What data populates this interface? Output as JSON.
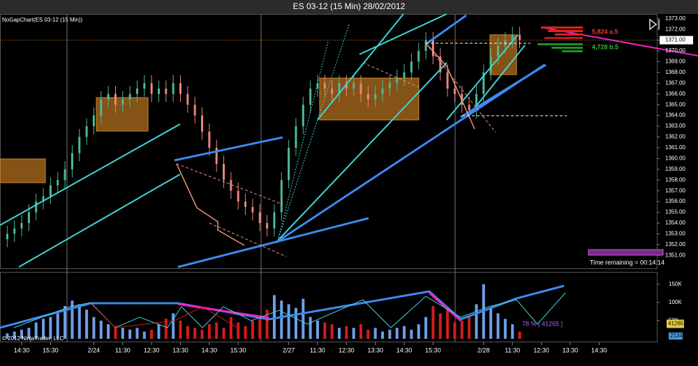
{
  "chart_data": {
    "type": "ohlc",
    "title": "ES 03-12 (15 Min)  28/02/2012",
    "indicator_label": "NoGapChart(ES 03-12 (15 Min))",
    "copyright": "© 2012 NinjaTrader, LLC",
    "ask_label": "5,824 a.5",
    "bid_label": "4,728 b.5",
    "time_remaining": "Time remaining = 00:14:14",
    "volume_ratio_label": "78 % [ 41265 ]",
    "current_volume": 41265,
    "secondary_volume": 2134,
    "last_price": {
      "value": 1371,
      "label": "1371.00"
    },
    "up_color": "#4fb99b",
    "down_color": "#e8877c",
    "volume_up_color": "#6f9ee8",
    "volume_down_color": "#d41c1c",
    "grid": false,
    "xlim": [
      -1,
      90
    ],
    "xticks": [
      {
        "value": 2,
        "label": "14:30"
      },
      {
        "value": 6,
        "label": "15:30"
      },
      {
        "value": 12,
        "label": "2/24"
      },
      {
        "value": 16,
        "label": "11:30"
      },
      {
        "value": 20,
        "label": "12:30"
      },
      {
        "value": 24,
        "label": "13:30"
      },
      {
        "value": 28,
        "label": "14:30"
      },
      {
        "value": 32,
        "label": "15:30"
      },
      {
        "value": 39,
        "label": "2/27"
      },
      {
        "value": 43,
        "label": "11:30"
      },
      {
        "value": 47,
        "label": "12:30"
      },
      {
        "value": 51,
        "label": "13:30"
      },
      {
        "value": 55,
        "label": "14:30"
      },
      {
        "value": 59,
        "label": "15:30"
      },
      {
        "value": 66,
        "label": "2/28"
      },
      {
        "value": 70,
        "label": "11:30"
      },
      {
        "value": 74,
        "label": "12:30"
      },
      {
        "value": 78,
        "label": "13:30"
      },
      {
        "value": 82,
        "label": "14:30"
      }
    ],
    "ylim": [
      1350.5,
      1373.5
    ],
    "yticks": [
      {
        "value": 1351,
        "label": "1351.00"
      },
      {
        "value": 1352,
        "label": "1352.00"
      },
      {
        "value": 1353,
        "label": "1353.00"
      },
      {
        "value": 1354,
        "label": "1354.00"
      },
      {
        "value": 1355,
        "label": "1355.00"
      },
      {
        "value": 1356,
        "label": "1356.00"
      },
      {
        "value": 1357,
        "label": "1357.00"
      },
      {
        "value": 1358,
        "label": "1358.00"
      },
      {
        "value": 1359,
        "label": "1359.00"
      },
      {
        "value": 1360,
        "label": "1360.00"
      },
      {
        "value": 1361,
        "label": "1361.00"
      },
      {
        "value": 1362,
        "label": "1362.00"
      },
      {
        "value": 1363,
        "label": "1363.00"
      },
      {
        "value": 1364,
        "label": "1364.00"
      },
      {
        "value": 1365,
        "label": "1365.00"
      },
      {
        "value": 1366,
        "label": "1366.00"
      },
      {
        "value": 1367,
        "label": "1367.00"
      },
      {
        "value": 1368,
        "label": "1368.00"
      },
      {
        "value": 1369,
        "label": "1369.00"
      },
      {
        "value": 1370,
        "label": "1370.00"
      },
      {
        "value": 1371,
        "label": "1371.00"
      },
      {
        "value": 1372,
        "label": "1372.00"
      },
      {
        "value": 1373,
        "label": "1373.00"
      }
    ],
    "y2lim": [
      0,
      182000
    ],
    "y2ticks": [
      {
        "value": 50000,
        "label": "50K"
      },
      {
        "value": 100000,
        "label": "100K"
      },
      {
        "value": 150000,
        "label": "150K"
      }
    ],
    "open": [
      1352.5,
      1353,
      1353.5,
      1354,
      1355,
      1356,
      1356.5,
      1357.5,
      1358,
      1359,
      1360.5,
      1362,
      1363,
      1364,
      1365.5,
      1366,
      1365,
      1365.5,
      1366,
      1366.5,
      1367,
      1366,
      1366.5,
      1366,
      1367,
      1366,
      1365,
      1364,
      1362.5,
      1361,
      1359.5,
      1358,
      1357,
      1356,
      1355.5,
      1355,
      1354,
      1353.5,
      1355,
      1358,
      1361,
      1363,
      1365,
      1366.5,
      1367,
      1366.5,
      1366,
      1367,
      1366.5,
      1367,
      1366,
      1365.5,
      1366,
      1366.5,
      1367,
      1367.5,
      1368,
      1369,
      1370,
      1371,
      1369.5,
      1368,
      1366.5,
      1366,
      1365,
      1364.5,
      1366,
      1368,
      1369.5,
      1370.5,
      1371,
      1371.5
    ],
    "high": [
      1353.75,
      1354.25,
      1354.75,
      1355.75,
      1356.75,
      1357.25,
      1358.25,
      1358.75,
      1359.75,
      1361.25,
      1362.75,
      1363.75,
      1364.75,
      1366.25,
      1366.75,
      1366.75,
      1366.25,
      1366.75,
      1367.25,
      1367.75,
      1367.75,
      1367.25,
      1367.25,
      1367.75,
      1367.75,
      1366.75,
      1365.75,
      1364.75,
      1363.25,
      1361.75,
      1360.25,
      1358.75,
      1357.75,
      1356.75,
      1356.25,
      1355.75,
      1354.75,
      1355.75,
      1358.75,
      1361.75,
      1363.75,
      1365.75,
      1367.25,
      1367.75,
      1367.75,
      1367.25,
      1367.75,
      1367.75,
      1367.75,
      1367.75,
      1366.75,
      1366.75,
      1367.25,
      1367.75,
      1368.25,
      1368.75,
      1369.75,
      1370.75,
      1371.75,
      1371.75,
      1370.25,
      1368.75,
      1367.25,
      1366.75,
      1365.75,
      1366.75,
      1368.75,
      1370.25,
      1371.25,
      1371.75,
      1372.25,
      1372.25
    ],
    "low": [
      1351.75,
      1352.25,
      1352.75,
      1353.25,
      1354.25,
      1355.25,
      1355.75,
      1356.75,
      1357.25,
      1358.25,
      1359.75,
      1361.25,
      1362.25,
      1363.25,
      1364.75,
      1364.25,
      1364.25,
      1364.75,
      1365.25,
      1365.75,
      1365.25,
      1365.25,
      1365.25,
      1365.25,
      1365.25,
      1364.25,
      1363.25,
      1361.75,
      1360.25,
      1358.75,
      1357.25,
      1356.25,
      1355.25,
      1354.75,
      1354.25,
      1353.25,
      1352.75,
      1352.75,
      1354.25,
      1357.25,
      1360.25,
      1362.25,
      1364.25,
      1365.75,
      1365.75,
      1365.25,
      1365.25,
      1365.75,
      1365.75,
      1365.25,
      1364.75,
      1364.75,
      1365.25,
      1365.75,
      1366.25,
      1366.75,
      1367.25,
      1368.25,
      1369.25,
      1368.75,
      1367.25,
      1365.75,
      1365.25,
      1364.25,
      1363.75,
      1363.75,
      1365.25,
      1367.25,
      1368.75,
      1369.75,
      1370.25,
      1370.25
    ],
    "close": [
      1353,
      1353.5,
      1354,
      1355,
      1356,
      1356.5,
      1357.5,
      1358,
      1359,
      1360.5,
      1362,
      1363,
      1364,
      1365.5,
      1366,
      1365,
      1365.5,
      1366,
      1366.5,
      1367,
      1366,
      1366.5,
      1366,
      1367,
      1366,
      1365,
      1364,
      1362.5,
      1361,
      1359.5,
      1358,
      1357,
      1356,
      1355.5,
      1355,
      1354,
      1353.5,
      1355,
      1358,
      1361,
      1363,
      1365,
      1366.5,
      1367,
      1366.5,
      1366,
      1367,
      1366.5,
      1367,
      1366,
      1365.5,
      1366,
      1366.5,
      1367,
      1367.5,
      1368,
      1369,
      1370,
      1371,
      1369.5,
      1368,
      1366.5,
      1366,
      1365,
      1364.5,
      1366,
      1368,
      1369.5,
      1370.5,
      1371,
      1371.5,
      1371
    ],
    "volume": [
      15000,
      20000,
      25000,
      30000,
      45000,
      55000,
      60000,
      70000,
      90000,
      105000,
      95000,
      80000,
      60000,
      50000,
      40000,
      35000,
      30000,
      25000,
      30000,
      20000,
      25000,
      40000,
      55000,
      70000,
      50000,
      35000,
      30000,
      25000,
      40000,
      45000,
      30000,
      60000,
      45000,
      35000,
      50000,
      55000,
      80000,
      120000,
      105000,
      95000,
      85000,
      110000,
      60000,
      50000,
      45000,
      40000,
      30000,
      35000,
      30000,
      40000,
      25000,
      30000,
      20000,
      25000,
      30000,
      35000,
      25000,
      40000,
      60000,
      90000,
      70000,
      80000,
      45000,
      50000,
      60000,
      95000,
      150000,
      85000,
      70000,
      55000,
      40000,
      20000
    ]
  }
}
